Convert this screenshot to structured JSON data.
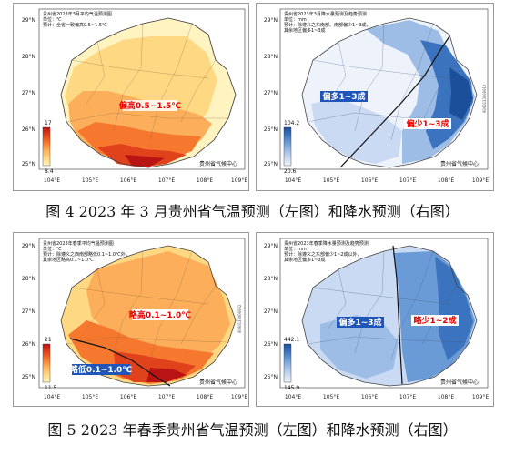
{
  "panels": [
    {
      "id": "fig4-left",
      "header_lines": [
        "贵州省2023年3月平均气温预测图",
        "单位：℃",
        "预计：全省一致偏高0.5~1.5℃"
      ],
      "annotations": [
        {
          "text": "偏高0.5~1.5℃",
          "bg": "#ffffff",
          "color": "#e60000"
        }
      ],
      "legend": {
        "max": "17",
        "min": "8.4"
      },
      "footer": "贵州省气候中心",
      "palette": [
        "#fff3bf",
        "#ffd884",
        "#fdae5a",
        "#f6782e",
        "#e0421c",
        "#b81414"
      ],
      "lat_ticks": [
        "29°N",
        "28°N",
        "27°N",
        "26°N",
        "25°N"
      ],
      "lon_ticks": [
        "104°E",
        "105°E",
        "106°E",
        "107°E",
        "108°E",
        "109°E"
      ]
    },
    {
      "id": "fig4-right",
      "header_lines": [
        "贵州省2023年3月降水量预测及趋势预测",
        "单位：mm",
        "预计：除遵义之东南部、南部偏少1~3成，",
        "其余地区偏多1~3成"
      ],
      "annotations": [
        {
          "text": "偏多1~3成",
          "bg": "#1f54b8",
          "color": "#ffffff"
        },
        {
          "text": "偏少1~3成",
          "bg": "#ffffff",
          "color": "#e60000"
        }
      ],
      "legend": {
        "max": "104.2",
        "min": "20.6"
      },
      "footer": "贵州省气候中心",
      "palette": [
        "#eef3fb",
        "#c9daf2",
        "#9dbde6",
        "#6a9bd6",
        "#3c73be",
        "#1b4f99"
      ],
      "lat_ticks": [
        "29°N",
        "28°N",
        "27°N",
        "26°N",
        "25°N"
      ],
      "lon_ticks": [
        "104°E",
        "105°E",
        "106°E",
        "107°E",
        "108°E",
        "109°E"
      ],
      "vertical_code": "0000133000012"
    },
    {
      "id": "fig5-left",
      "header_lines": [
        "贵州省2023年春季平均气温预测图",
        "单位：℃",
        "预计：除遵义之西南部略低0.1~1.0℃外，",
        "其余地区略高0.1~1.0℃"
      ],
      "annotations": [
        {
          "text": "略高0.1~1.0℃",
          "bg": "#ffffff",
          "color": "#e60000"
        },
        {
          "text": "略低0.1~1.0℃",
          "bg": "#1f54b8",
          "color": "#ffffff"
        }
      ],
      "legend": {
        "max": "21",
        "min": "11.5"
      },
      "footer": "贵州省气候中心",
      "palette": [
        "#fff3bf",
        "#ffd884",
        "#fdae5a",
        "#f6782e",
        "#e0421c",
        "#b81414"
      ],
      "lat_ticks": [
        "29°N",
        "28°N",
        "27°N",
        "26°N",
        "25°N"
      ],
      "lon_ticks": [
        "104°E",
        "105°E",
        "106°E",
        "107°E",
        "108°E",
        "109°E"
      ],
      "vertical_code": "0000133000002"
    },
    {
      "id": "fig5-right",
      "header_lines": [
        "贵州省2023年春季降水量预测及趋势预测",
        "单位：mm",
        "预计：除遵义之东部偏少1~2成以外，",
        "其余地区偏多1~3成"
      ],
      "annotations": [
        {
          "text": "偏多1~3成",
          "bg": "#1f54b8",
          "color": "#ffffff"
        },
        {
          "text": "略少1~2成",
          "bg": "#ffffff",
          "color": "#e60000"
        }
      ],
      "legend": {
        "max": "442.1",
        "min": "145.9"
      },
      "footer": "贵州省气候中心",
      "palette": [
        "#eef3fb",
        "#c9daf2",
        "#9dbde6",
        "#6a9bd6",
        "#3c73be",
        "#1b4f99"
      ],
      "lat_ticks": [
        "29°N",
        "28°N",
        "27°N",
        "26°N",
        "25°N"
      ],
      "lon_ticks": [
        "104°E",
        "105°E",
        "106°E",
        "107°E",
        "108°E",
        "109°E"
      ]
    }
  ],
  "captions": {
    "fig4": "图 4 2023 年 3 月贵州省气温预测（左图）和降水预测（右图）",
    "fig5": "图 5 2023 年春季贵州省气温预测（左图）和降水预测（右图）"
  }
}
